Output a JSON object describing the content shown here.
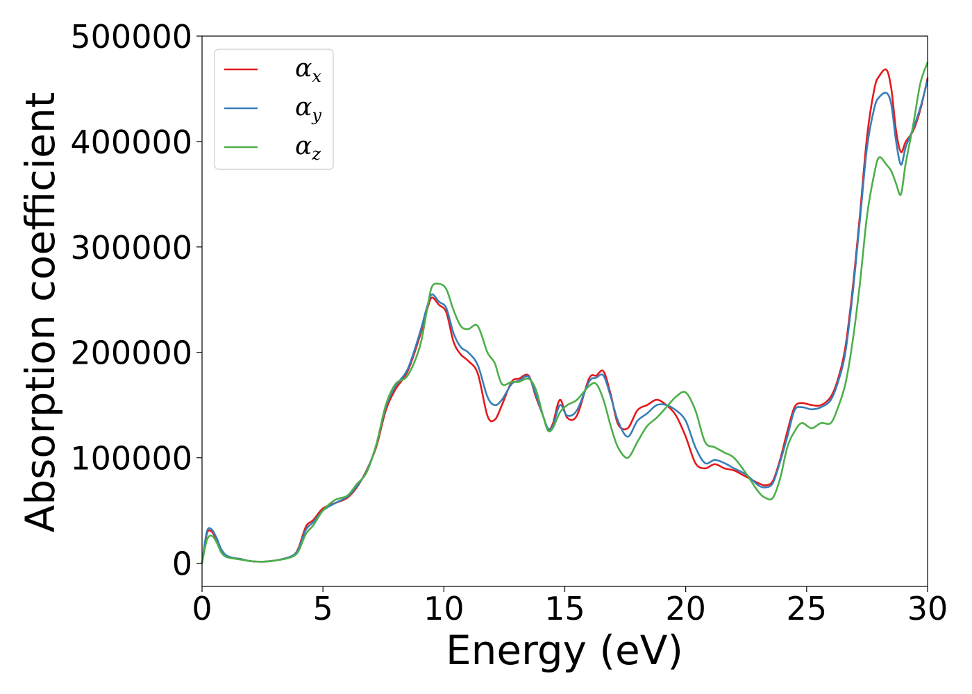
{
  "chart_data": {
    "type": "line",
    "title": "",
    "xlabel": "Energy (eV)",
    "ylabel": "Absorption coefficient",
    "xlim": [
      0,
      30
    ],
    "ylim": [
      -22000,
      500000
    ],
    "xticks": [
      0,
      5,
      10,
      15,
      20,
      25,
      30
    ],
    "yticks": [
      0,
      100000,
      200000,
      300000,
      400000,
      500000
    ],
    "grid": false,
    "legend_position": "top-left",
    "series": [
      {
        "name": "α_x",
        "name_base": "α",
        "name_sub": "x",
        "color": "#e41a1c",
        "x": [
          0,
          0.2,
          0.4,
          0.6,
          0.8,
          1.0,
          1.3,
          1.6,
          2.0,
          2.5,
          3.0,
          3.5,
          3.8,
          4.0,
          4.3,
          4.6,
          5.0,
          5.5,
          6.0,
          6.4,
          6.8,
          7.2,
          7.6,
          8.0,
          8.5,
          9.0,
          9.3,
          9.5,
          9.8,
          10.1,
          10.4,
          10.7,
          11.0,
          11.4,
          11.8,
          12.1,
          12.4,
          12.8,
          13.1,
          13.5,
          13.8,
          14.1,
          14.3,
          14.5,
          14.8,
          15.1,
          15.5,
          16.0,
          16.3,
          16.6,
          16.9,
          17.2,
          17.6,
          18.0,
          18.4,
          18.8,
          19.2,
          19.6,
          20.0,
          20.4,
          20.8,
          21.2,
          21.6,
          22.0,
          22.5,
          23.0,
          23.3,
          23.6,
          23.9,
          24.2,
          24.5,
          24.8,
          25.2,
          25.6,
          26.0,
          26.3,
          26.6,
          26.9,
          27.2,
          27.5,
          27.8,
          28.0,
          28.3,
          28.5,
          28.7,
          28.9,
          29.1,
          29.4,
          29.7,
          30.0
        ],
        "values": [
          0,
          28000,
          30000,
          22000,
          12000,
          7000,
          5000,
          4000,
          2000,
          1500,
          2500,
          5000,
          8000,
          15000,
          35000,
          41000,
          52000,
          57000,
          62000,
          72000,
          88000,
          110000,
          145000,
          165000,
          182000,
          215000,
          240000,
          252000,
          245000,
          238000,
          210000,
          198000,
          192000,
          180000,
          140000,
          136000,
          150000,
          172000,
          175000,
          178000,
          158000,
          140000,
          127000,
          132000,
          155000,
          138000,
          140000,
          175000,
          178000,
          182000,
          160000,
          132000,
          128000,
          145000,
          150000,
          155000,
          150000,
          140000,
          120000,
          95000,
          90000,
          94000,
          90000,
          88000,
          82000,
          76000,
          74000,
          78000,
          98000,
          125000,
          148000,
          152000,
          150000,
          150000,
          158000,
          175000,
          205000,
          260000,
          330000,
          405000,
          450000,
          462000,
          468000,
          450000,
          410000,
          390000,
          400000,
          410000,
          430000,
          460000
        ]
      },
      {
        "name": "α_y",
        "name_base": "α",
        "name_sub": "y",
        "color": "#377eb8",
        "x": [
          0,
          0.2,
          0.4,
          0.6,
          0.8,
          1.0,
          1.3,
          1.6,
          2.0,
          2.5,
          3.0,
          3.5,
          3.8,
          4.0,
          4.3,
          4.6,
          5.0,
          5.5,
          6.0,
          6.4,
          6.8,
          7.2,
          7.6,
          8.0,
          8.5,
          9.0,
          9.3,
          9.5,
          9.8,
          10.1,
          10.4,
          10.7,
          11.0,
          11.4,
          11.8,
          12.1,
          12.4,
          12.8,
          13.1,
          13.5,
          13.8,
          14.1,
          14.3,
          14.5,
          14.8,
          15.1,
          15.5,
          16.0,
          16.3,
          16.6,
          16.9,
          17.2,
          17.6,
          18.0,
          18.4,
          18.8,
          19.2,
          19.6,
          20.0,
          20.4,
          20.8,
          21.2,
          21.6,
          22.0,
          22.5,
          23.0,
          23.3,
          23.6,
          23.9,
          24.2,
          24.5,
          24.8,
          25.2,
          25.6,
          26.0,
          26.3,
          26.6,
          26.9,
          27.2,
          27.5,
          27.8,
          28.0,
          28.3,
          28.5,
          28.7,
          28.9,
          29.1,
          29.4,
          29.7,
          30.0
        ],
        "values": [
          0,
          30000,
          32000,
          24000,
          13000,
          7500,
          5000,
          4000,
          2000,
          1500,
          2500,
          5000,
          8000,
          14000,
          32000,
          39000,
          50000,
          57000,
          63000,
          73000,
          87000,
          112000,
          148000,
          168000,
          184000,
          218000,
          243000,
          255000,
          248000,
          242000,
          218000,
          205000,
          200000,
          188000,
          158000,
          150000,
          155000,
          170000,
          173000,
          177000,
          160000,
          140000,
          128000,
          130000,
          150000,
          140000,
          145000,
          172000,
          176000,
          178000,
          158000,
          135000,
          120000,
          135000,
          142000,
          150000,
          150000,
          145000,
          135000,
          110000,
          95000,
          98000,
          95000,
          90000,
          84000,
          74000,
          72000,
          76000,
          96000,
          120000,
          145000,
          148000,
          146000,
          148000,
          155000,
          172000,
          200000,
          255000,
          325000,
          395000,
          432000,
          442000,
          446000,
          435000,
          400000,
          378000,
          395000,
          412000,
          432000,
          458000
        ]
      },
      {
        "name": "α_z",
        "name_base": "α",
        "name_sub": "z",
        "color": "#4daf4a",
        "x": [
          0,
          0.2,
          0.4,
          0.6,
          0.8,
          1.0,
          1.3,
          1.6,
          2.0,
          2.5,
          3.0,
          3.5,
          3.8,
          4.0,
          4.3,
          4.6,
          5.0,
          5.5,
          6.0,
          6.4,
          6.8,
          7.2,
          7.6,
          8.0,
          8.5,
          9.0,
          9.3,
          9.5,
          9.8,
          10.1,
          10.4,
          10.7,
          11.0,
          11.4,
          11.8,
          12.1,
          12.4,
          12.8,
          13.1,
          13.5,
          13.8,
          14.1,
          14.3,
          14.5,
          14.8,
          15.1,
          15.5,
          16.0,
          16.3,
          16.6,
          16.9,
          17.2,
          17.6,
          18.0,
          18.4,
          18.8,
          19.2,
          19.6,
          20.0,
          20.4,
          20.8,
          21.2,
          21.6,
          22.0,
          22.5,
          23.0,
          23.3,
          23.6,
          23.9,
          24.2,
          24.5,
          24.8,
          25.2,
          25.6,
          26.0,
          26.3,
          26.6,
          26.9,
          27.2,
          27.5,
          27.8,
          28.0,
          28.3,
          28.5,
          28.7,
          28.9,
          29.1,
          29.4,
          29.7,
          30.0
        ],
        "values": [
          0,
          22000,
          26000,
          20000,
          10000,
          6000,
          4500,
          3500,
          2000,
          1500,
          2500,
          4500,
          7000,
          12000,
          28000,
          36000,
          50000,
          60000,
          64000,
          75000,
          86000,
          112000,
          150000,
          170000,
          178000,
          205000,
          240000,
          262000,
          265000,
          260000,
          240000,
          225000,
          222000,
          225000,
          200000,
          190000,
          170000,
          172000,
          172000,
          175000,
          165000,
          140000,
          126000,
          128000,
          143000,
          150000,
          155000,
          168000,
          170000,
          155000,
          130000,
          110000,
          100000,
          115000,
          130000,
          138000,
          148000,
          158000,
          162000,
          145000,
          115000,
          110000,
          105000,
          100000,
          85000,
          68000,
          62000,
          62000,
          80000,
          110000,
          125000,
          133000,
          128000,
          133000,
          133000,
          148000,
          170000,
          210000,
          265000,
          330000,
          370000,
          385000,
          378000,
          372000,
          360000,
          350000,
          380000,
          415000,
          455000,
          475000
        ]
      }
    ]
  }
}
